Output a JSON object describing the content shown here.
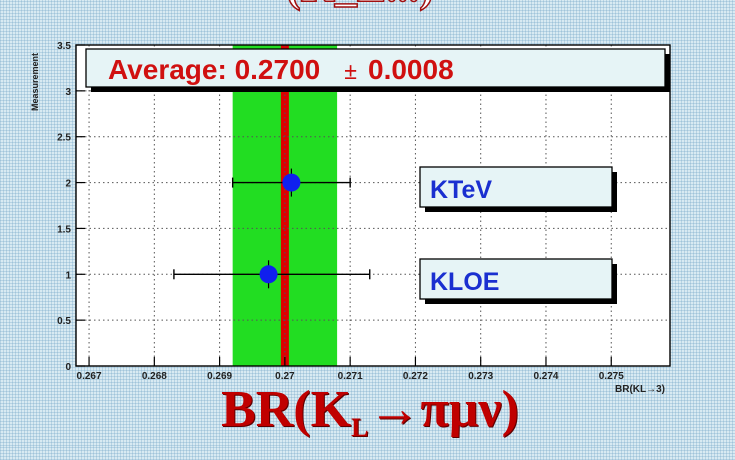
{
  "header_fragment": "(K_L...)",
  "footer_title": {
    "prefix": "BR(K",
    "subscript": "L",
    "suffix": "→πμν)"
  },
  "colors": {
    "plot_background": "#ffffff",
    "band_green": "#22dd22",
    "central_line": "#dd0000",
    "point": "#1020ee",
    "label_text": "#1a2fd0",
    "average_text": "#d01010",
    "box_fill": "#e6f4f6"
  },
  "chart_data": {
    "type": "scatter",
    "xlabel": "BR(KL→3)",
    "ylabel": "Measurement",
    "xlim": [
      0.2668,
      0.2759
    ],
    "ylim": [
      0,
      3.5
    ],
    "x_ticks": [
      "0.267",
      "0.268",
      "0.269",
      "0.27",
      "0.271",
      "0.272",
      "0.273",
      "0.274",
      "0.275"
    ],
    "x_tick_values": [
      0.267,
      0.268,
      0.269,
      0.27,
      0.271,
      0.272,
      0.273,
      0.274,
      0.275
    ],
    "y_ticks": [
      "0",
      "0.5",
      "1",
      "1.5",
      "2",
      "2.5",
      "3",
      "3.5"
    ],
    "y_tick_values": [
      0,
      0.5,
      1,
      1.5,
      2,
      2.5,
      3,
      3.5
    ],
    "grid": true,
    "average": {
      "label": "Average: 0.2700",
      "pm": "±",
      "error_text": "0.0008",
      "value": 0.27,
      "error": 0.0008
    },
    "points": [
      {
        "name": "KTeV",
        "y": 2,
        "value": 0.2701,
        "xerr_low": 0.2692,
        "xerr_high": 0.271
      },
      {
        "name": "KLOE",
        "y": 1,
        "value": 0.26975,
        "xerr_low": 0.2683,
        "xerr_high": 0.2713
      }
    ]
  }
}
